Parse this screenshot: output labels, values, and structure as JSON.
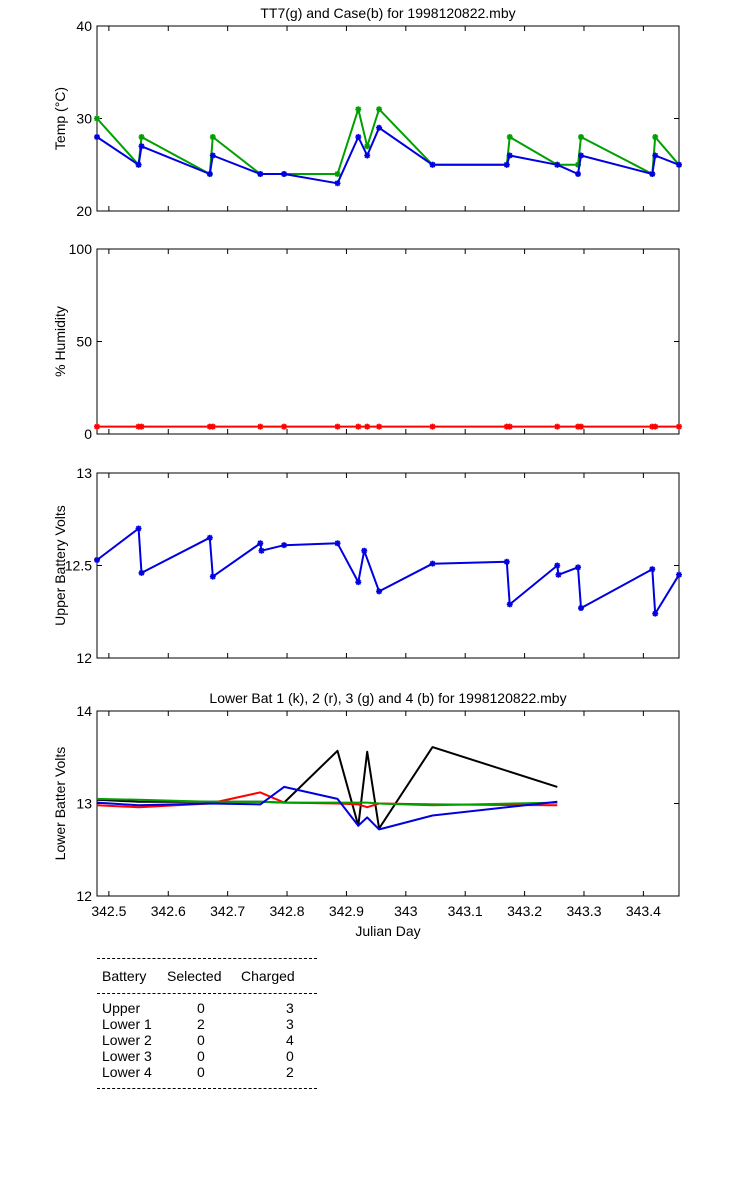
{
  "chart_data": [
    {
      "type": "line",
      "title": "TT7(g) and Case(b) for 1998120822.mby",
      "ylabel": "Temp  (°C)",
      "xlabel": "",
      "xlim": [
        342.48,
        343.46
      ],
      "ylim": [
        20,
        40
      ],
      "yticks": [
        20,
        30,
        40
      ],
      "grid": false,
      "series": [
        {
          "color": "#00a000",
          "x": [
            342.48,
            342.55,
            342.555,
            342.67,
            342.675,
            342.755,
            342.795,
            342.885,
            342.92,
            342.935,
            342.955,
            343.045,
            343.17,
            343.175,
            343.255,
            343.29,
            343.295,
            343.415,
            343.42,
            343.46
          ],
          "y": [
            30,
            25,
            28,
            24,
            28,
            24,
            24,
            24,
            31,
            27,
            31,
            25,
            25,
            28,
            25,
            25,
            28,
            24,
            28,
            25
          ]
        },
        {
          "color": "#0000e0",
          "x": [
            342.48,
            342.55,
            342.555,
            342.67,
            342.675,
            342.755,
            342.795,
            342.885,
            342.92,
            342.935,
            342.955,
            343.045,
            343.17,
            343.175,
            343.255,
            343.29,
            343.295,
            343.415,
            343.42,
            343.46
          ],
          "y": [
            28,
            25,
            27,
            24,
            26,
            24,
            24,
            23,
            28,
            26,
            29,
            25,
            25,
            26,
            25,
            24,
            26,
            24,
            26,
            25
          ]
        }
      ]
    },
    {
      "type": "line",
      "title": "",
      "ylabel": "% Humidity",
      "xlabel": "",
      "xlim": [
        342.48,
        343.46
      ],
      "ylim": [
        0,
        100
      ],
      "yticks": [
        0,
        50,
        100
      ],
      "grid": false,
      "series": [
        {
          "color": "#ff0000",
          "x": [
            342.48,
            342.55,
            342.555,
            342.67,
            342.675,
            342.755,
            342.795,
            342.885,
            342.92,
            342.935,
            342.955,
            343.045,
            343.17,
            343.175,
            343.255,
            343.29,
            343.295,
            343.415,
            343.42,
            343.46
          ],
          "y": [
            4,
            4,
            4,
            4,
            4,
            4,
            4,
            4,
            4,
            4,
            4,
            4,
            4,
            4,
            4,
            4,
            4,
            4,
            4,
            4
          ]
        }
      ]
    },
    {
      "type": "line",
      "title": "",
      "ylabel": "Upper Battery Volts",
      "xlabel": "",
      "xlim": [
        342.48,
        343.46
      ],
      "ylim": [
        12,
        13
      ],
      "yticks": [
        12,
        12.5,
        13
      ],
      "grid": false,
      "series": [
        {
          "color": "#0000e0",
          "x": [
            342.48,
            342.55,
            342.555,
            342.67,
            342.675,
            342.755,
            342.757,
            342.795,
            342.885,
            342.92,
            342.93,
            342.955,
            343.045,
            343.17,
            343.175,
            343.255,
            343.257,
            343.29,
            343.295,
            343.415,
            343.42,
            343.46
          ],
          "y": [
            12.53,
            12.7,
            12.46,
            12.65,
            12.44,
            12.62,
            12.58,
            12.61,
            12.62,
            12.41,
            12.58,
            12.36,
            12.51,
            12.52,
            12.29,
            12.5,
            12.45,
            12.49,
            12.27,
            12.48,
            12.24,
            12.45
          ]
        }
      ]
    },
    {
      "type": "line",
      "title": "Lower Bat 1 (k), 2 (r), 3 (g) and 4 (b) for 1998120822.mby",
      "ylabel": "Lower Batter Volts",
      "xlabel": "Julian Day",
      "xlim": [
        342.48,
        343.46
      ],
      "ylim": [
        12,
        14
      ],
      "yticks": [
        12,
        13,
        14
      ],
      "xticks": [
        342.5,
        342.6,
        342.7,
        342.8,
        342.9,
        343,
        343.1,
        343.2,
        343.3,
        343.4
      ],
      "xticklabels": [
        "342.5",
        "342.6",
        "342.7",
        "342.8",
        "342.9",
        "343",
        "343.1",
        "343.2",
        "343.3",
        "343.4"
      ],
      "grid": false,
      "series": [
        {
          "color": "#000000",
          "x": [
            342.48,
            342.55,
            342.67,
            342.755,
            342.795,
            342.885,
            342.92,
            342.935,
            342.955,
            343.045,
            343.255
          ],
          "y": [
            13.04,
            13.02,
            13.02,
            13.02,
            13.01,
            13.57,
            12.76,
            13.56,
            12.73,
            13.61,
            13.18
          ]
        },
        {
          "color": "#ff0000",
          "x": [
            342.48,
            342.55,
            342.67,
            342.755,
            342.795,
            342.885,
            342.92,
            342.935,
            342.955,
            343.045,
            343.255
          ],
          "y": [
            12.98,
            12.96,
            13.0,
            13.12,
            13.01,
            13.0,
            12.99,
            12.96,
            13.0,
            12.99,
            12.98
          ]
        },
        {
          "color": "#00a000",
          "x": [
            342.48,
            342.55,
            342.67,
            342.755,
            342.795,
            342.885,
            342.92,
            342.935,
            342.955,
            343.045,
            343.255
          ],
          "y": [
            13.05,
            13.04,
            13.02,
            13.02,
            13.01,
            13.01,
            13.01,
            13.01,
            13.0,
            12.98,
            13.01
          ]
        },
        {
          "color": "#0000e0",
          "x": [
            342.48,
            342.55,
            342.67,
            342.755,
            342.795,
            342.885,
            342.92,
            342.935,
            342.955,
            343.045,
            343.255
          ],
          "y": [
            13.01,
            12.98,
            13.0,
            12.99,
            13.18,
            13.05,
            12.76,
            12.85,
            12.72,
            12.87,
            13.02
          ]
        }
      ]
    }
  ],
  "battery_table": {
    "headers": [
      "Battery",
      "Selected",
      "Charged"
    ],
    "rows": [
      [
        "Upper",
        "0",
        "3"
      ],
      [
        "Lower 1",
        "2",
        "3"
      ],
      [
        "Lower 2",
        "0",
        "4"
      ],
      [
        "Lower 3",
        "0",
        "0"
      ],
      [
        "Lower 4",
        "0",
        "2"
      ]
    ]
  }
}
